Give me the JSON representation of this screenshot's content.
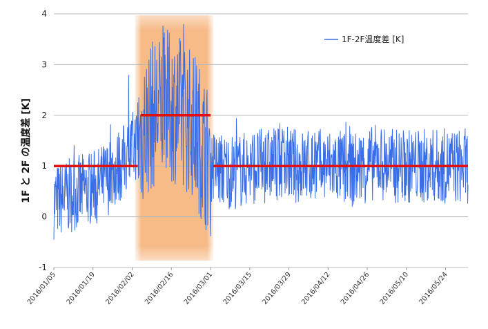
{
  "chart_data": {
    "type": "line",
    "ylabel": "1F と 2F の温度差 [K]",
    "ylim": [
      -1,
      4
    ],
    "y_ticks": [
      "-1",
      "0",
      "1",
      "2",
      "3",
      "4"
    ],
    "x_ticks": [
      "2016/01/05",
      "2016/01/19",
      "2016/02/02",
      "2016/02/16",
      "2016/03/01",
      "2016/03/15",
      "2016/03/29",
      "2016/04/12",
      "2016/04/26",
      "2016/05/10",
      "2016/05/24"
    ],
    "x_range": [
      "2016/01/05",
      "2016/06/01"
    ],
    "grid": "horizontal",
    "legend_position": "top-right",
    "highlight_band": {
      "from": "2016/02/04",
      "to": "2016/03/01",
      "color": "#f4a460"
    },
    "series": [
      {
        "name": "1F-2F温度差 [K]",
        "color": "#3a6ee8",
        "x": [
          "2016/01/05",
          "2016/01/10",
          "2016/01/15",
          "2016/01/20",
          "2016/01/25",
          "2016/01/30",
          "2016/02/04",
          "2016/02/09",
          "2016/02/14",
          "2016/02/19",
          "2016/02/24",
          "2016/03/01",
          "2016/03/06",
          "2016/03/11",
          "2016/03/16",
          "2016/03/21",
          "2016/03/26",
          "2016/03/31",
          "2016/04/05",
          "2016/04/10",
          "2016/04/15",
          "2016/04/20",
          "2016/04/25",
          "2016/04/30",
          "2016/05/05",
          "2016/05/10",
          "2016/05/15",
          "2016/05/20",
          "2016/05/25",
          "2016/05/30"
        ],
        "y": [
          0.3,
          0.4,
          0.5,
          0.6,
          0.8,
          1.1,
          1.5,
          2.0,
          2.2,
          2.1,
          1.8,
          1.0,
          0.9,
          0.9,
          1.0,
          1.0,
          1.1,
          1.0,
          1.0,
          1.0,
          1.0,
          0.9,
          1.0,
          1.1,
          1.0,
          1.0,
          1.0,
          1.0,
          1.0,
          1.0
        ],
        "note_shape": "noisy daily series"
      },
      {
        "name": "",
        "color": "#e01010",
        "type": "step-mean",
        "segments": [
          {
            "from": "2016/01/05",
            "to": "2016/02/04",
            "value": 1.0
          },
          {
            "from": "2016/02/05",
            "to": "2016/03/01",
            "value": 2.0
          },
          {
            "from": "2016/03/02",
            "to": "2016/06/01",
            "value": 1.0
          }
        ]
      }
    ]
  }
}
